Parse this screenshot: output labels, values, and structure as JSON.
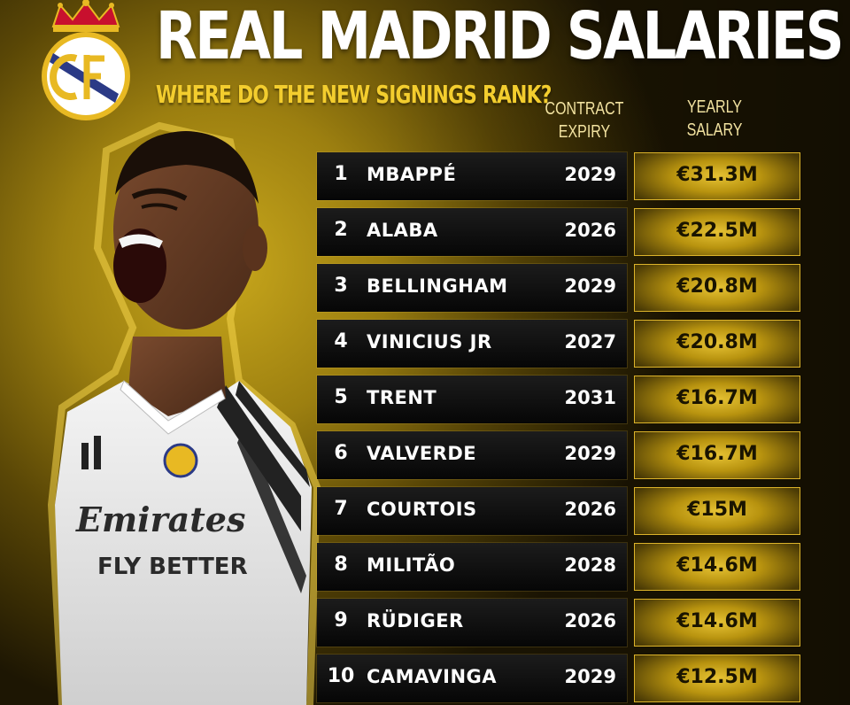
{
  "header": {
    "title": "REAL MADRID SALARIES",
    "subtitle": "WHERE DO THE NEW SIGNINGS RANK?",
    "col_contract": [
      "CONTRACT",
      "EXPIRY"
    ],
    "col_salary": [
      "YEARLY",
      "SALARY"
    ]
  },
  "colors": {
    "gold": "#f3cd2e",
    "dark": "#0a0a0a"
  },
  "rows": [
    {
      "rank": "1",
      "name": "MBAPPÉ",
      "expiry": "2029",
      "salary": "€31.3M"
    },
    {
      "rank": "2",
      "name": "ALABA",
      "expiry": "2026",
      "salary": "€22.5M"
    },
    {
      "rank": "3",
      "name": "BELLINGHAM",
      "expiry": "2029",
      "salary": "€20.8M"
    },
    {
      "rank": "4",
      "name": "VINICIUS JR",
      "expiry": "2027",
      "salary": "€20.8M"
    },
    {
      "rank": "5",
      "name": "TRENT",
      "expiry": "2031",
      "salary": "€16.7M"
    },
    {
      "rank": "6",
      "name": "VALVERDE",
      "expiry": "2029",
      "salary": "€16.7M"
    },
    {
      "rank": "7",
      "name": "COURTOIS",
      "expiry": "2026",
      "salary": "€15M"
    },
    {
      "rank": "8",
      "name": "MILITÃO",
      "expiry": "2028",
      "salary": "€14.6M"
    },
    {
      "rank": "9",
      "name": "RÜDIGER",
      "expiry": "2026",
      "salary": "€14.6M"
    },
    {
      "rank": "10",
      "name": "CAMAVINGA",
      "expiry": "2029",
      "salary": "€12.5M"
    }
  ],
  "jersey": {
    "sponsor_line1": "Emirates",
    "sponsor_line2": "FLY BETTER"
  }
}
